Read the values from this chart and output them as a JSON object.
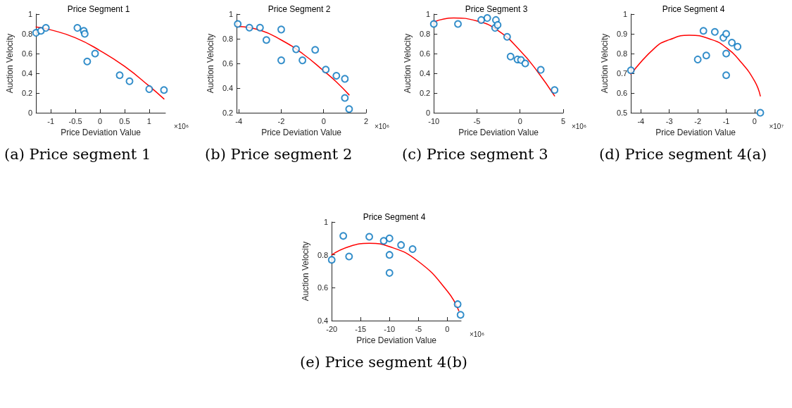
{
  "chart_data": [
    {
      "type": "scatter",
      "title": "Price Segment 1",
      "xlabel": "Price Deviation Value",
      "ylabel": "Auction Velocity",
      "grid": false,
      "xlim": [
        -1.3,
        1.33
      ],
      "xticks": [
        -1,
        -0.5,
        0,
        0.5,
        1
      ],
      "ylim": [
        0,
        1
      ],
      "yticks": [
        0,
        0.2,
        0.4,
        0.6,
        0.8,
        1
      ],
      "annotations": [
        "×10⁶",
        "(a) Price segment 1"
      ],
      "series": [
        {
          "marker": "circle",
          "color": "#0072bd",
          "x": [
            -1.3,
            -1.2,
            -1.1,
            -0.46,
            -0.33,
            -0.31,
            -0.26,
            -0.1,
            0.4,
            0.6,
            1.0,
            1.3
          ],
          "values": [
            0.81,
            0.83,
            0.86,
            0.86,
            0.83,
            0.8,
            0.52,
            0.6,
            0.38,
            0.32,
            0.24,
            0.23
          ]
        },
        {
          "type": "line",
          "marker": "none",
          "color": "#ff0000",
          "line_style": "solid",
          "x": [
            -1.3,
            -1.0,
            -0.5,
            0,
            0.5,
            1.0,
            1.3
          ],
          "values": [
            0.87,
            0.84,
            0.76,
            0.63,
            0.47,
            0.27,
            0.14
          ]
        }
      ]
    },
    {
      "type": "scatter",
      "title": "Price Segment 2",
      "xlabel": "Price Deviation Value",
      "ylabel": "Auction Velocity",
      "grid": false,
      "xlim": [
        -4.1,
        2
      ],
      "xticks": [
        -4,
        -2,
        0,
        2
      ],
      "ylim": [
        0.2,
        1
      ],
      "yticks": [
        0.2,
        0.4,
        0.6,
        0.8,
        1
      ],
      "annotations": [
        "×10⁶",
        "(b) Price segment 2"
      ],
      "series": [
        {
          "marker": "circle",
          "color": "#0072bd",
          "x": [
            -4.05,
            -3.5,
            -3.0,
            -2.7,
            -2.0,
            -2.0,
            -1.3,
            -1.0,
            -0.4,
            0.1,
            0.6,
            1.0,
            1.0,
            1.2
          ],
          "values": [
            0.92,
            0.89,
            0.89,
            0.79,
            0.875,
            0.625,
            0.715,
            0.625,
            0.71,
            0.55,
            0.5,
            0.475,
            0.32,
            0.23
          ]
        },
        {
          "type": "line",
          "marker": "none",
          "color": "#ff0000",
          "line_style": "solid",
          "x": [
            -4.05,
            -3,
            -2,
            -1,
            0,
            0.6,
            1.2
          ],
          "values": [
            0.9,
            0.87,
            0.79,
            0.68,
            0.54,
            0.45,
            0.345
          ]
        }
      ]
    },
    {
      "type": "scatter",
      "title": "Price Segment 3",
      "xlabel": "Price Deviation Value",
      "ylabel": "Auction Velocity",
      "grid": false,
      "xlim": [
        -10,
        5
      ],
      "xticks": [
        -10,
        -5,
        0,
        5
      ],
      "ylim": [
        0,
        1
      ],
      "yticks": [
        0,
        0.2,
        0.4,
        0.6,
        0.8,
        1
      ],
      "annotations": [
        "×10⁶",
        "(c) Price segment 3"
      ],
      "series": [
        {
          "marker": "circle",
          "color": "#0072bd",
          "x": [
            -10,
            -7.2,
            -4.5,
            -3.8,
            -2.8,
            -2.9,
            -2.6,
            -1.5,
            -1.1,
            -0.3,
            0.1,
            0.6,
            2.4,
            4.0
          ],
          "values": [
            0.9,
            0.9,
            0.94,
            0.96,
            0.94,
            0.86,
            0.89,
            0.77,
            0.57,
            0.54,
            0.535,
            0.5,
            0.435,
            0.23
          ]
        },
        {
          "type": "line",
          "marker": "none",
          "color": "#ff0000",
          "line_style": "solid",
          "x": [
            -10,
            -7.7,
            -5,
            -2.5,
            0,
            2,
            4
          ],
          "values": [
            0.92,
            0.96,
            0.93,
            0.83,
            0.63,
            0.42,
            0.17
          ]
        }
      ]
    },
    {
      "type": "scatter",
      "title": "Price Segment 4",
      "xlabel": "Price Deviation Value",
      "ylabel": "Auction Velocity",
      "grid": false,
      "xlim": [
        -4.35,
        0.2
      ],
      "xticks": [
        -4,
        -3,
        -2,
        -1,
        0
      ],
      "ylim": [
        0.5,
        1
      ],
      "yticks": [
        0.5,
        0.6,
        0.7,
        0.8,
        0.9,
        1
      ],
      "annotations": [
        "×10⁷",
        "(d) Price segment 4(a)"
      ],
      "series": [
        {
          "marker": "circle",
          "color": "#0072bd",
          "x": [
            -4.35,
            -2.0,
            -1.8,
            -1.7,
            -1.4,
            -1.1,
            -1.0,
            -1.0,
            -1.0,
            -0.8,
            -0.6,
            0.2
          ],
          "values": [
            0.715,
            0.77,
            0.915,
            0.79,
            0.91,
            0.88,
            0.9,
            0.8,
            0.69,
            0.855,
            0.835,
            0.5
          ]
        },
        {
          "type": "line",
          "marker": "none",
          "color": "#ff0000",
          "line_style": "solid",
          "x": [
            -4.35,
            -3.5,
            -3,
            -2.3,
            -1.5,
            -1,
            -0.5,
            0,
            0.2
          ],
          "values": [
            0.695,
            0.83,
            0.87,
            0.893,
            0.87,
            0.83,
            0.76,
            0.66,
            0.585
          ]
        }
      ]
    },
    {
      "type": "scatter",
      "title": "Price Segment 4",
      "xlabel": "Price Deviation Value",
      "ylabel": "Auction Velocity",
      "grid": false,
      "xlim": [
        -20,
        2.4
      ],
      "xticks": [
        -20,
        -15,
        -10,
        -5,
        0
      ],
      "ylim": [
        0.4,
        1
      ],
      "yticks": [
        0.4,
        0.6,
        0.8,
        1
      ],
      "annotations": [
        "×10⁶",
        "(e) Price segment 4(b)"
      ],
      "series": [
        {
          "marker": "circle",
          "color": "#0072bd",
          "x": [
            -20,
            -18,
            -17,
            -13.5,
            -11,
            -10,
            -10,
            -10,
            -8,
            -6,
            1.8,
            2.3
          ],
          "values": [
            0.77,
            0.915,
            0.79,
            0.91,
            0.885,
            0.9,
            0.8,
            0.69,
            0.86,
            0.835,
            0.5,
            0.435
          ]
        },
        {
          "type": "line",
          "marker": "none",
          "color": "#ff0000",
          "line_style": "solid",
          "x": [
            -20,
            -17,
            -13.5,
            -10,
            -5,
            0,
            2
          ],
          "values": [
            0.8,
            0.85,
            0.87,
            0.85,
            0.76,
            0.58,
            0.46
          ]
        }
      ]
    }
  ]
}
